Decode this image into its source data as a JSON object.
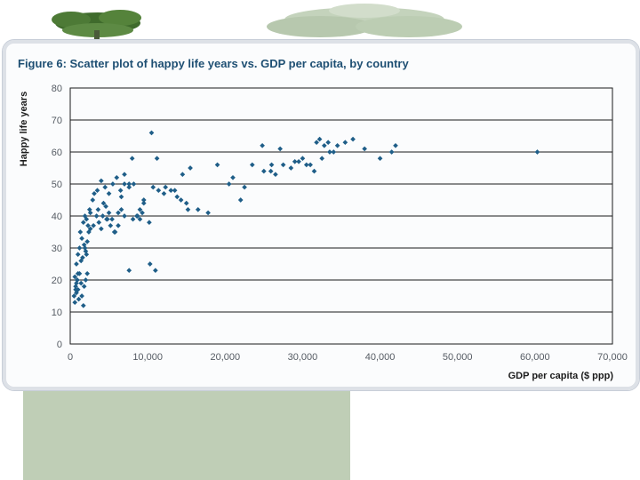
{
  "colors": {
    "title": "#1e4f73",
    "marker": "#1f5e88",
    "grid": "#1a1a1a",
    "background_band": "#a9bd9e"
  },
  "chart_data": {
    "type": "scatter",
    "title": "Figure 6: Scatter plot of happy life years vs. GDP per capita, by country",
    "xlabel": "GDP per capita ($ ppp)",
    "ylabel": "Happy life years",
    "xlim": [
      0,
      70000
    ],
    "ylim": [
      0,
      80
    ],
    "xticks": [
      0,
      10000,
      20000,
      30000,
      40000,
      50000,
      60000,
      70000
    ],
    "xtick_labels": [
      "0",
      "10,000",
      "20,000",
      "30,000",
      "40,000",
      "50,000",
      "60,000",
      "70,000"
    ],
    "yticks": [
      0,
      10,
      20,
      30,
      40,
      50,
      60,
      70,
      80
    ],
    "ytick_labels": [
      "0",
      "10",
      "20",
      "30",
      "40",
      "50",
      "60",
      "70",
      "80"
    ],
    "grid": "horizontal",
    "x": [
      500,
      600,
      700,
      800,
      900,
      1000,
      1100,
      600,
      700,
      800,
      900,
      1000,
      1200,
      1400,
      1500,
      1700,
      1800,
      2000,
      2200,
      800,
      1000,
      1200,
      1300,
      1500,
      1700,
      1800,
      2000,
      2200,
      2400,
      2600,
      1400,
      1600,
      1900,
      2100,
      2300,
      1900,
      2100,
      2500,
      2900,
      3100,
      3400,
      3700,
      4000,
      4300,
      4600,
      5000,
      5400,
      5800,
      6200,
      6600,
      7000,
      3500,
      4000,
      4500,
      5000,
      5500,
      6000,
      6500,
      7000,
      7600,
      8000,
      8600,
      9000,
      9500,
      8200,
      9000,
      9500,
      10200,
      10700,
      11400,
      12100,
      13000,
      13800,
      14500,
      15500,
      16500,
      17800,
      19000,
      20500,
      22000,
      23500,
      25000,
      26500,
      27500,
      28500,
      29500,
      30500,
      31500,
      32500,
      33500,
      34500,
      35500,
      36500,
      38000,
      40000,
      41500,
      42000,
      31800,
      32200,
      32800,
      33300,
      34000,
      30000,
      29000,
      31000,
      10500,
      11200,
      12300,
      13500,
      14300,
      15000,
      7600,
      8100,
      8700,
      9300,
      6600,
      6200,
      7000,
      7600,
      4800,
      5200,
      5700,
      3600,
      4200,
      4700,
      2600,
      3000,
      10300,
      11000,
      60300,
      24800,
      26000,
      27100,
      21000,
      22500,
      25900,
      15200
    ],
    "y": [
      15,
      13,
      17,
      19,
      20,
      22,
      14,
      21,
      18,
      16,
      20,
      17,
      22,
      19,
      15,
      12,
      18,
      20,
      22,
      25,
      28,
      30,
      35,
      33,
      38,
      31,
      29,
      32,
      35,
      36,
      26,
      27,
      40,
      39,
      37,
      30,
      28,
      42,
      45,
      47,
      40,
      38,
      36,
      44,
      43,
      41,
      39,
      35,
      37,
      42,
      40,
      48,
      51,
      49,
      47,
      50,
      52,
      48,
      53,
      50,
      58,
      40,
      42,
      44,
      50,
      39,
      45,
      38,
      49,
      48,
      47,
      48,
      46,
      53,
      55,
      42,
      41,
      56,
      50,
      45,
      56,
      54,
      53,
      56,
      55,
      57,
      56,
      54,
      58,
      60,
      62,
      63,
      64,
      61,
      58,
      60,
      62,
      63,
      64,
      62,
      63,
      60,
      58,
      57,
      56,
      66,
      58,
      49,
      48,
      45,
      44,
      23,
      39,
      40,
      41,
      46,
      41,
      50,
      49,
      39,
      37,
      35,
      42,
      40,
      39,
      41,
      37,
      25,
      23,
      60,
      62,
      56,
      61,
      52,
      49,
      54,
      42
    ],
    "series": [
      {
        "x": [
          500,
          600,
          700,
          800,
          900,
          1000,
          1100,
          600,
          700,
          800,
          900,
          1000,
          1200,
          1400,
          1500,
          1700,
          1800,
          2000,
          2200,
          800,
          1000,
          1200,
          1300,
          1500,
          1700,
          1800,
          2000,
          2200,
          2400,
          2600,
          1400,
          1600,
          1900,
          2100,
          2300,
          1900,
          2100,
          2500,
          2900,
          3100,
          3400,
          3700,
          4000,
          4300,
          4600,
          5000,
          5400,
          5800,
          6200,
          6600,
          7000,
          3500,
          4000,
          4500,
          5000,
          5500,
          6000,
          6500,
          7000,
          7600,
          8000,
          8600,
          9000,
          9500,
          8200,
          9000,
          9500,
          10200,
          10700,
          11400,
          12100,
          13000,
          13800,
          14500,
          15500,
          16500,
          17800,
          19000,
          20500,
          22000,
          23500,
          25000,
          26500,
          27500,
          28500,
          29500,
          30500,
          31500,
          32500,
          33500,
          34500,
          35500,
          36500,
          38000,
          40000,
          41500,
          42000,
          31800,
          32200,
          32800,
          33300,
          34000,
          30000,
          29000,
          31000,
          10500,
          11200,
          12300,
          13500,
          14300,
          15000,
          7600,
          8100,
          8700,
          9300,
          6600,
          6200,
          7000,
          7600,
          4800,
          5200,
          5700,
          3600,
          4200,
          4700,
          2600,
          3000,
          10300,
          11000,
          60300,
          24800,
          26000,
          27100,
          21000,
          22500,
          25900,
          15200
        ],
        "y": [
          15,
          13,
          17,
          19,
          20,
          22,
          14,
          21,
          18,
          16,
          20,
          17,
          22,
          19,
          15,
          12,
          18,
          20,
          22,
          25,
          28,
          30,
          35,
          33,
          38,
          31,
          29,
          32,
          35,
          36,
          26,
          27,
          40,
          39,
          37,
          30,
          28,
          42,
          45,
          47,
          40,
          38,
          36,
          44,
          43,
          41,
          39,
          35,
          37,
          42,
          40,
          48,
          51,
          49,
          47,
          50,
          52,
          48,
          53,
          50,
          58,
          40,
          42,
          44,
          50,
          39,
          45,
          38,
          49,
          48,
          47,
          48,
          46,
          53,
          55,
          42,
          41,
          56,
          50,
          45,
          56,
          54,
          53,
          56,
          55,
          57,
          56,
          54,
          58,
          60,
          62,
          63,
          64,
          61,
          58,
          60,
          62,
          63,
          64,
          62,
          63,
          60,
          58,
          57,
          56,
          66,
          58,
          49,
          48,
          45,
          44,
          23,
          39,
          40,
          41,
          46,
          41,
          50,
          49,
          39,
          37,
          35,
          42,
          40,
          39,
          41,
          37,
          25,
          23,
          60,
          62,
          56,
          61,
          52,
          49,
          54,
          42
        ]
      }
    ]
  }
}
